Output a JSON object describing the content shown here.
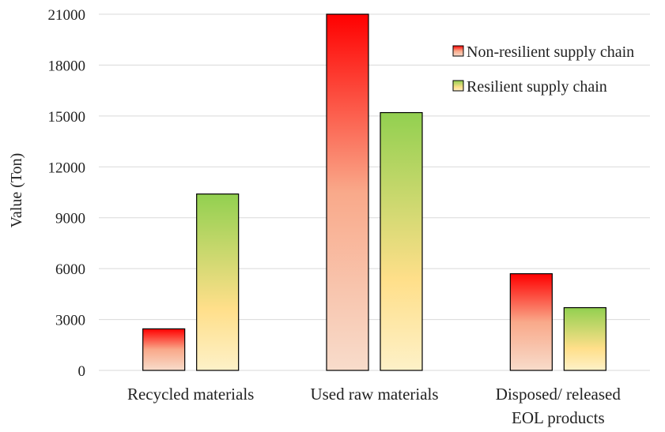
{
  "chart_data": {
    "type": "bar",
    "title": "",
    "xlabel": "",
    "ylabel": "Value (Ton)",
    "ylim": [
      0,
      21000
    ],
    "yticks": [
      0,
      3000,
      6000,
      9000,
      12000,
      15000,
      18000,
      21000
    ],
    "categories": [
      [
        "Recycled materials"
      ],
      [
        "Used raw materials"
      ],
      [
        "Disposed/ released",
        "EOL products"
      ]
    ],
    "series": [
      {
        "name": "Non-resilient supply chain",
        "values": [
          2450,
          21000,
          5700
        ],
        "gradient_top": "#ff0000",
        "gradient_bottom": "#f8d8c8"
      },
      {
        "name": "Resilient supply chain",
        "values": [
          10400,
          15200,
          3700
        ],
        "gradient_top": "#92d050",
        "gradient_mid": "#ffe08a",
        "gradient_bottom": "#fdf2c8"
      }
    ],
    "grid": true,
    "legend_position": "top-right"
  }
}
